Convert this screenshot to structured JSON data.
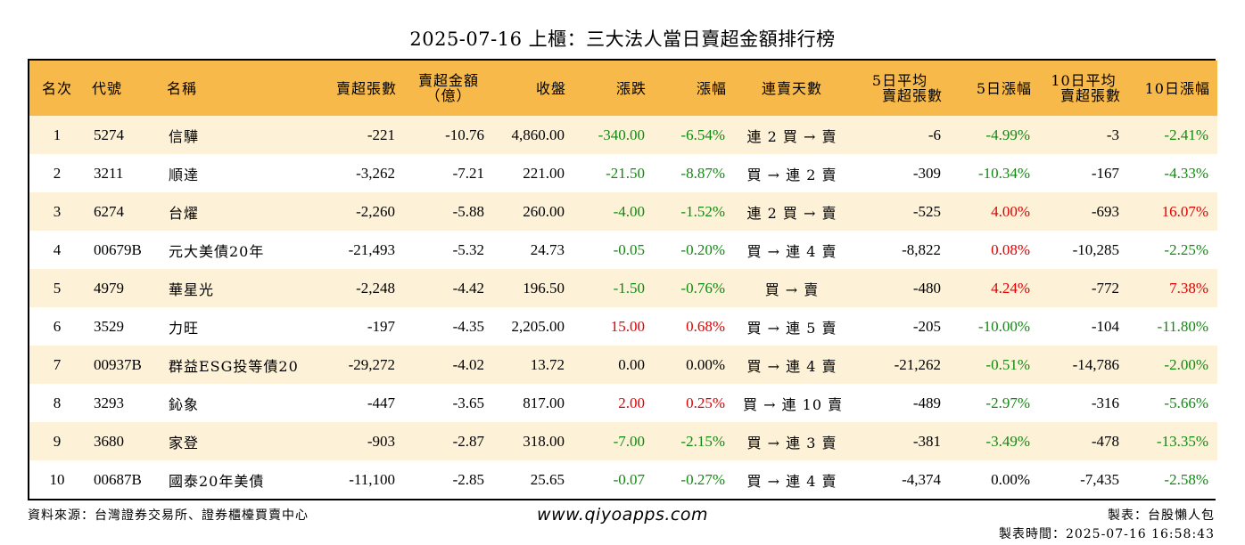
{
  "title": "2025-07-16 上櫃：三大法人當日賣超金額排行榜",
  "headers": {
    "rank": "名次",
    "code": "代號",
    "name": "名稱",
    "sell_shares": "賣超張數",
    "sell_amount_1": "賣超金額",
    "sell_amount_2": "（億）",
    "close": "收盤",
    "change": "漲跌",
    "pct": "漲幅",
    "streak": "連賣天數",
    "avg5_1": "5日平均",
    "avg5_2": "賣超張數",
    "pct5": "5日漲幅",
    "avg10_1": "10日平均",
    "avg10_2": "賣超張數",
    "pct10": "10日漲幅"
  },
  "rows": [
    {
      "rank": "1",
      "code": "5274",
      "name": "信驊",
      "sell_shares": "-221",
      "sell_amount": "-10.76",
      "close": "4,860.00",
      "change": "-340.00",
      "change_sign": "neg",
      "pct": "-6.54%",
      "pct_sign": "neg",
      "streak": "連 2 買 → 賣",
      "avg5": "-6",
      "pct5": "-4.99%",
      "pct5_sign": "neg",
      "avg10": "-3",
      "pct10": "-2.41%",
      "pct10_sign": "neg"
    },
    {
      "rank": "2",
      "code": "3211",
      "name": "順達",
      "sell_shares": "-3,262",
      "sell_amount": "-7.21",
      "close": "221.00",
      "change": "-21.50",
      "change_sign": "neg",
      "pct": "-8.87%",
      "pct_sign": "neg",
      "streak": "買 → 連 2 賣",
      "avg5": "-309",
      "pct5": "-10.34%",
      "pct5_sign": "neg",
      "avg10": "-167",
      "pct10": "-4.33%",
      "pct10_sign": "neg"
    },
    {
      "rank": "3",
      "code": "6274",
      "name": "台燿",
      "sell_shares": "-2,260",
      "sell_amount": "-5.88",
      "close": "260.00",
      "change": "-4.00",
      "change_sign": "neg",
      "pct": "-1.52%",
      "pct_sign": "neg",
      "streak": "連 2 買 → 賣",
      "avg5": "-525",
      "pct5": "4.00%",
      "pct5_sign": "pos",
      "avg10": "-693",
      "pct10": "16.07%",
      "pct10_sign": "pos"
    },
    {
      "rank": "4",
      "code": "00679B",
      "name": "元大美債20年",
      "sell_shares": "-21,493",
      "sell_amount": "-5.32",
      "close": "24.73",
      "change": "-0.05",
      "change_sign": "neg",
      "pct": "-0.20%",
      "pct_sign": "neg",
      "streak": "買 → 連 4 賣",
      "avg5": "-8,822",
      "pct5": "0.08%",
      "pct5_sign": "pos",
      "avg10": "-10,285",
      "pct10": "-2.25%",
      "pct10_sign": "neg"
    },
    {
      "rank": "5",
      "code": "4979",
      "name": "華星光",
      "sell_shares": "-2,248",
      "sell_amount": "-4.42",
      "close": "196.50",
      "change": "-1.50",
      "change_sign": "neg",
      "pct": "-0.76%",
      "pct_sign": "neg",
      "streak": "買 → 賣",
      "avg5": "-480",
      "pct5": "4.24%",
      "pct5_sign": "pos",
      "avg10": "-772",
      "pct10": "7.38%",
      "pct10_sign": "pos"
    },
    {
      "rank": "6",
      "code": "3529",
      "name": "力旺",
      "sell_shares": "-197",
      "sell_amount": "-4.35",
      "close": "2,205.00",
      "change": "15.00",
      "change_sign": "pos",
      "pct": "0.68%",
      "pct_sign": "pos",
      "streak": "買 → 連 5 賣",
      "avg5": "-205",
      "pct5": "-10.00%",
      "pct5_sign": "neg",
      "avg10": "-104",
      "pct10": "-11.80%",
      "pct10_sign": "neg"
    },
    {
      "rank": "7",
      "code": "00937B",
      "name": "群益ESG投等債20",
      "sell_shares": "-29,272",
      "sell_amount": "-4.02",
      "close": "13.72",
      "change": "0.00",
      "change_sign": "zero",
      "pct": "0.00%",
      "pct_sign": "zero",
      "streak": "買 → 連 4 賣",
      "avg5": "-21,262",
      "pct5": "-0.51%",
      "pct5_sign": "neg",
      "avg10": "-14,786",
      "pct10": "-2.00%",
      "pct10_sign": "neg"
    },
    {
      "rank": "8",
      "code": "3293",
      "name": "鈊象",
      "sell_shares": "-447",
      "sell_amount": "-3.65",
      "close": "817.00",
      "change": "2.00",
      "change_sign": "pos",
      "pct": "0.25%",
      "pct_sign": "pos",
      "streak": "買 → 連 10 賣",
      "avg5": "-489",
      "pct5": "-2.97%",
      "pct5_sign": "neg",
      "avg10": "-316",
      "pct10": "-5.66%",
      "pct10_sign": "neg"
    },
    {
      "rank": "9",
      "code": "3680",
      "name": "家登",
      "sell_shares": "-903",
      "sell_amount": "-2.87",
      "close": "318.00",
      "change": "-7.00",
      "change_sign": "neg",
      "pct": "-2.15%",
      "pct_sign": "neg",
      "streak": "買 → 連 3 賣",
      "avg5": "-381",
      "pct5": "-3.49%",
      "pct5_sign": "neg",
      "avg10": "-478",
      "pct10": "-13.35%",
      "pct10_sign": "neg"
    },
    {
      "rank": "10",
      "code": "00687B",
      "name": "國泰20年美債",
      "sell_shares": "-11,100",
      "sell_amount": "-2.85",
      "close": "25.65",
      "change": "-0.07",
      "change_sign": "neg",
      "pct": "-0.27%",
      "pct_sign": "neg",
      "streak": "買 → 連 4 賣",
      "avg5": "-4,374",
      "pct5": "0.00%",
      "pct5_sign": "zero",
      "avg10": "-7,435",
      "pct10": "-2.58%",
      "pct10_sign": "neg"
    }
  ],
  "footer": {
    "source": "資料來源：台灣證券交易所、證券櫃檯買賣中心",
    "website": "www.qiyoapps.com",
    "maker": "製表：台股懶人包",
    "made_time": "製表時間：2025-07-16 16:58:43"
  },
  "colors": {
    "header_bg": "#f6b94a",
    "row_alt_bg": "#fdf1d8",
    "positive": "#e00000",
    "negative": "#108a10"
  }
}
